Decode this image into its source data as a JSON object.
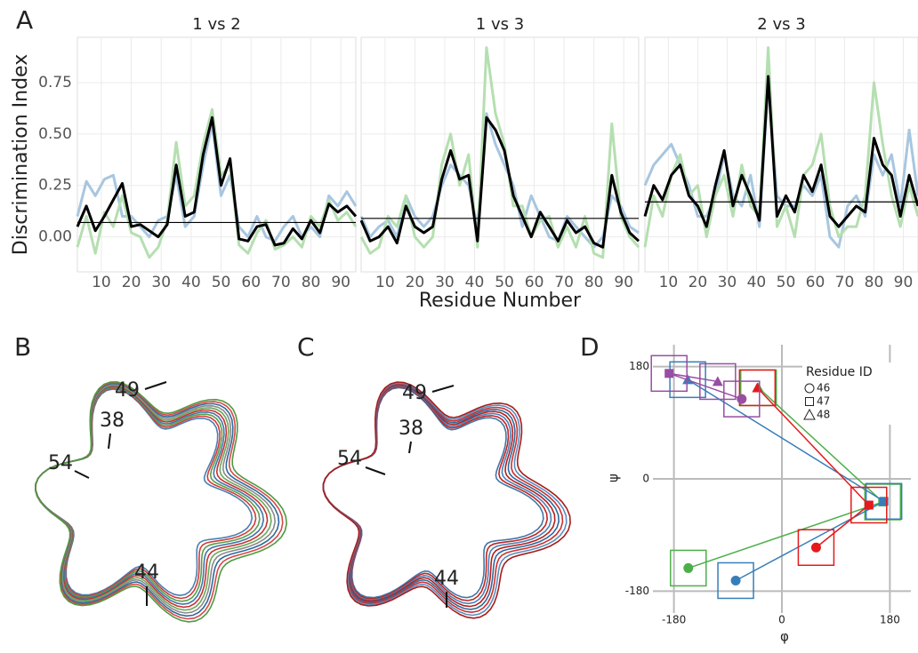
{
  "figure": {
    "panel_labels": [
      "A",
      "B",
      "C",
      "D"
    ],
    "panel_B_labels": [
      "49",
      "38",
      "54",
      "44"
    ],
    "panel_C_labels": [
      "49",
      "38",
      "54",
      "44"
    ]
  },
  "chart_data": [
    {
      "type": "line",
      "title": "1 vs 2",
      "ylabel": "Discrimination Index",
      "x": [
        2,
        5,
        8,
        11,
        14,
        17,
        20,
        23,
        26,
        29,
        32,
        35,
        38,
        41,
        44,
        47,
        50,
        53,
        56,
        59,
        62,
        65,
        68,
        71,
        74,
        77,
        80,
        83,
        86,
        89,
        92,
        95
      ],
      "xlim": [
        2,
        95
      ],
      "xticks": [
        10,
        20,
        30,
        40,
        50,
        60,
        70,
        80,
        90
      ],
      "ylim": [
        -0.17,
        0.97
      ],
      "yticks": [
        {
          "value": 0,
          "label": "0.00"
        },
        0.25,
        {
          "value": 0.5,
          "label": "0.50"
        },
        0.75
      ],
      "hline": 0.07,
      "grid": true,
      "series": [
        {
          "color": "#a8c6e0",
          "values": [
            0.1,
            0.27,
            0.2,
            0.28,
            0.3,
            0.1,
            0.1,
            0.05,
            0.0,
            0.08,
            0.1,
            0.3,
            0.05,
            0.1,
            0.35,
            0.55,
            0.2,
            0.3,
            0.05,
            0.0,
            0.1,
            0.0,
            -0.02,
            0.05,
            0.1,
            0.0,
            0.05,
            0.0,
            0.2,
            0.15,
            0.22,
            0.15
          ]
        },
        {
          "color": "#b5dfb0",
          "values": [
            -0.05,
            0.1,
            -0.08,
            0.12,
            0.05,
            0.2,
            0.02,
            0.0,
            -0.1,
            -0.05,
            0.08,
            0.46,
            0.15,
            0.2,
            0.45,
            0.62,
            0.3,
            0.35,
            -0.04,
            -0.08,
            0.02,
            0.08,
            -0.06,
            -0.04,
            0.0,
            -0.05,
            0.1,
            0.05,
            0.18,
            0.08,
            0.12,
            0.05
          ]
        },
        {
          "color": "#000000",
          "values": [
            0.05,
            0.15,
            0.03,
            0.1,
            0.18,
            0.26,
            0.05,
            0.06,
            0.03,
            0.0,
            0.06,
            0.35,
            0.1,
            0.12,
            0.4,
            0.58,
            0.25,
            0.38,
            -0.01,
            -0.02,
            0.05,
            0.06,
            -0.04,
            -0.03,
            0.04,
            -0.01,
            0.08,
            0.02,
            0.16,
            0.12,
            0.15,
            0.1
          ]
        }
      ]
    },
    {
      "type": "line",
      "title": "1 vs 3",
      "xlabel": "Residue Number",
      "x": [
        2,
        5,
        8,
        11,
        14,
        17,
        20,
        23,
        26,
        29,
        32,
        35,
        38,
        41,
        44,
        47,
        50,
        53,
        56,
        59,
        62,
        65,
        68,
        71,
        74,
        77,
        80,
        83,
        86,
        89,
        92,
        95
      ],
      "xlim": [
        2,
        95
      ],
      "xticks": [
        10,
        20,
        30,
        40,
        50,
        60,
        70,
        80,
        90
      ],
      "ylim": [
        -0.17,
        0.97
      ],
      "hline": 0.09,
      "grid": true,
      "series": [
        {
          "color": "#a8c6e0",
          "values": [
            0.1,
            0.0,
            0.05,
            0.08,
            0.0,
            0.2,
            0.1,
            0.05,
            0.1,
            0.25,
            0.35,
            0.3,
            0.25,
            0.05,
            0.6,
            0.45,
            0.35,
            0.25,
            0.05,
            0.2,
            0.1,
            0.0,
            -0.02,
            0.1,
            0.05,
            0.0,
            -0.05,
            0.0,
            0.2,
            0.15,
            0.05,
            0.02
          ]
        },
        {
          "color": "#b5dfb0",
          "values": [
            0.0,
            -0.08,
            -0.05,
            0.1,
            0.05,
            0.2,
            0.0,
            -0.05,
            0.0,
            0.35,
            0.5,
            0.25,
            0.4,
            -0.05,
            0.92,
            0.6,
            0.45,
            0.15,
            0.15,
            0.0,
            0.08,
            0.1,
            -0.05,
            0.05,
            -0.05,
            0.1,
            -0.08,
            -0.1,
            0.55,
            0.1,
            0.0,
            -0.05
          ]
        },
        {
          "color": "#000000",
          "values": [
            0.08,
            -0.02,
            0.0,
            0.05,
            -0.03,
            0.15,
            0.05,
            0.02,
            0.05,
            0.28,
            0.42,
            0.28,
            0.3,
            -0.02,
            0.58,
            0.52,
            0.42,
            0.2,
            0.1,
            0.0,
            0.12,
            0.05,
            -0.02,
            0.08,
            0.02,
            0.05,
            -0.03,
            -0.05,
            0.3,
            0.12,
            0.02,
            -0.02
          ]
        }
      ]
    },
    {
      "type": "line",
      "title": "2 vs 3",
      "x": [
        2,
        5,
        8,
        11,
        14,
        17,
        20,
        23,
        26,
        29,
        32,
        35,
        38,
        41,
        44,
        47,
        50,
        53,
        56,
        59,
        62,
        65,
        68,
        71,
        74,
        77,
        80,
        83,
        86,
        89,
        92,
        95
      ],
      "xlim": [
        2,
        95
      ],
      "xticks": [
        10,
        20,
        30,
        40,
        50,
        60,
        70,
        80,
        90
      ],
      "ylim": [
        -0.17,
        0.97
      ],
      "hline": 0.17,
      "grid": true,
      "series": [
        {
          "color": "#a8c6e0",
          "values": [
            0.25,
            0.35,
            0.4,
            0.45,
            0.35,
            0.25,
            0.1,
            0.1,
            0.2,
            0.4,
            0.2,
            0.15,
            0.3,
            0.05,
            0.75,
            0.2,
            0.15,
            0.15,
            0.25,
            0.2,
            0.3,
            0.0,
            -0.05,
            0.15,
            0.2,
            0.1,
            0.4,
            0.3,
            0.4,
            0.15,
            0.52,
            0.2
          ]
        },
        {
          "color": "#b5dfb0",
          "values": [
            -0.05,
            0.2,
            0.1,
            0.3,
            0.4,
            0.2,
            0.25,
            0.0,
            0.2,
            0.3,
            0.1,
            0.35,
            0.15,
            0.1,
            0.92,
            0.05,
            0.15,
            0.0,
            0.3,
            0.35,
            0.5,
            0.15,
            0.0,
            0.05,
            0.05,
            0.2,
            0.75,
            0.45,
            0.2,
            0.05,
            0.25,
            0.1
          ]
        },
        {
          "color": "#000000",
          "values": [
            0.1,
            0.25,
            0.18,
            0.3,
            0.35,
            0.2,
            0.15,
            0.05,
            0.25,
            0.42,
            0.15,
            0.3,
            0.2,
            0.08,
            0.78,
            0.1,
            0.2,
            0.12,
            0.3,
            0.22,
            0.35,
            0.1,
            0.05,
            0.1,
            0.15,
            0.12,
            0.48,
            0.35,
            0.3,
            0.1,
            0.3,
            0.15
          ]
        }
      ]
    },
    {
      "type": "scatter",
      "xlabel": "φ",
      "ylabel": "ψ",
      "xlim": [
        -215,
        215
      ],
      "ylim": [
        -215,
        215
      ],
      "xticks": [
        -180,
        0,
        180
      ],
      "yticks": [
        -180,
        0,
        180
      ],
      "grid": true,
      "legend_title": "Residue ID",
      "marker_labels": [
        "46",
        "47",
        "48"
      ],
      "series": [
        {
          "color": "#4daf4a",
          "x": [
            -156,
            168,
            -39
          ],
          "y": [
            -143,
            -37,
            146
          ]
        },
        {
          "color": "#377eb8",
          "x": [
            -77,
            170,
            -157
          ],
          "y": [
            -163,
            -36,
            159
          ]
        },
        {
          "color": "#e41a1c",
          "x": [
            57,
            145,
            -41
          ],
          "y": [
            -110,
            -42,
            146
          ]
        },
        {
          "color": "#984ea3",
          "x": [
            -67,
            -188,
            -107
          ],
          "y": [
            128,
            169,
            156
          ]
        }
      ]
    }
  ]
}
